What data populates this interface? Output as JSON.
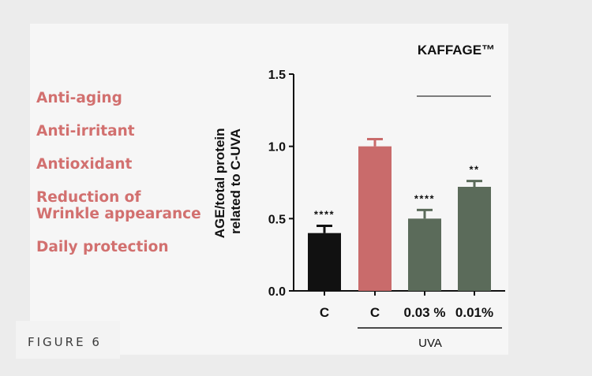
{
  "benefits": [
    "Anti-aging",
    "Anti-irritant",
    "Antioxidant",
    "Reduction of Wrinkle appearance",
    "Daily protection"
  ],
  "figure_label": "FIGURE 6",
  "colors": {
    "benefit_text": "#d2706f",
    "bar_control": "#111111",
    "bar_uva_control": "#c96b6b",
    "bar_treated": "#5b6b5a"
  },
  "chart_data": {
    "type": "bar",
    "title": "KAFFAGE™",
    "ylabel": "AGE/total protein related to C-UVA",
    "ylim": [
      0,
      1.5
    ],
    "yticks": [
      "0.0",
      "0.5",
      "1.0",
      "1.5"
    ],
    "categories": [
      "C",
      "C",
      "0.03 %",
      "0.01%"
    ],
    "group_label": "UVA",
    "values": [
      0.4,
      1.0,
      0.5,
      0.72
    ],
    "errors": [
      0.05,
      0.05,
      0.06,
      0.04
    ],
    "significance": [
      "****",
      "",
      "****",
      "**"
    ],
    "grid": false
  }
}
